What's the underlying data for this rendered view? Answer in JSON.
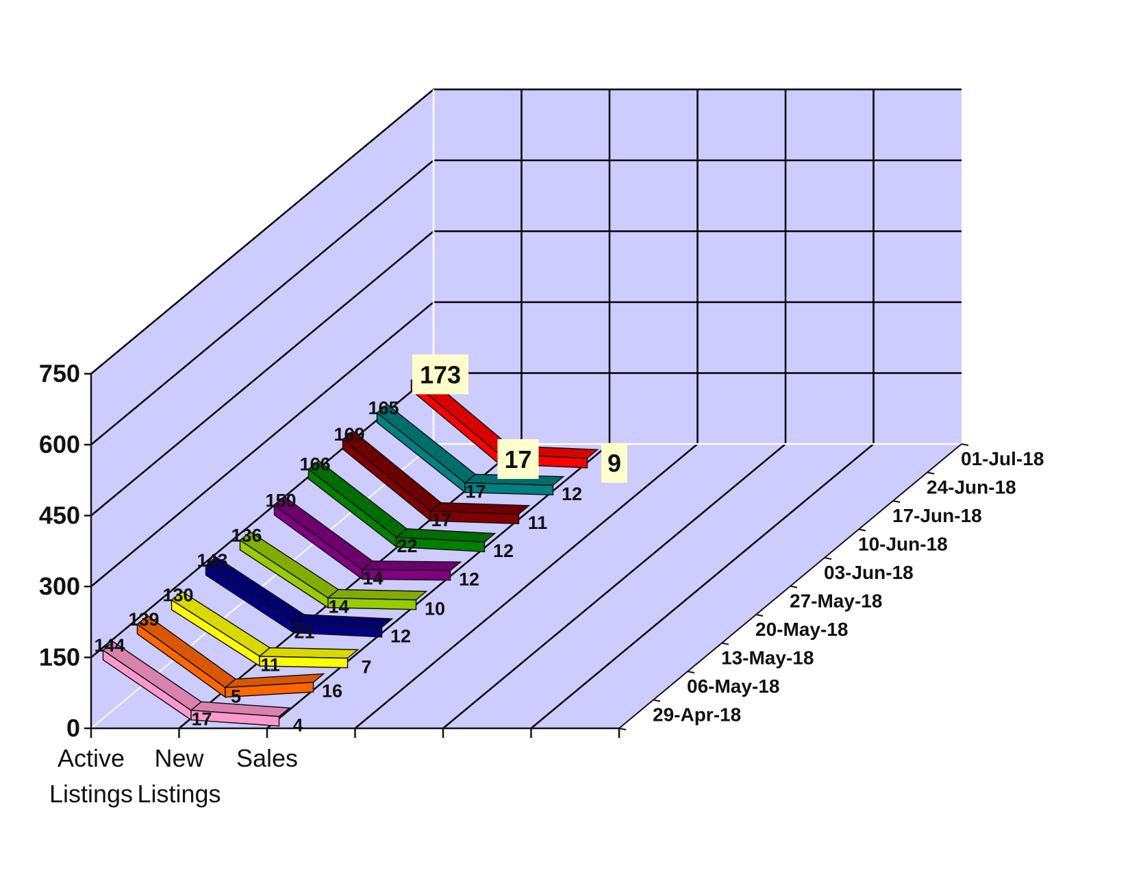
{
  "chart_data": {
    "type": "line",
    "style": "3d-ribbon",
    "title": "",
    "categories": [
      "Active Listings",
      "New Listings",
      "Sales"
    ],
    "category_lines": [
      [
        "Active",
        "Listings"
      ],
      [
        "New",
        "Listings"
      ],
      [
        "Sales"
      ]
    ],
    "y_ticks": [
      "0",
      "150",
      "300",
      "450",
      "600",
      "750"
    ],
    "ylim": [
      0,
      750
    ],
    "grid": true,
    "series": [
      {
        "name": "29-Apr-18",
        "values": [
          144,
          17,
          4
        ],
        "color": "#FF99CC"
      },
      {
        "name": "06-May-18",
        "values": [
          139,
          5,
          16
        ],
        "color": "#FF6600"
      },
      {
        "name": "13-May-18",
        "values": [
          130,
          11,
          7
        ],
        "color": "#FFFF00"
      },
      {
        "name": "20-May-18",
        "values": [
          143,
          21,
          12
        ],
        "color": "#000080"
      },
      {
        "name": "27-May-18",
        "values": [
          136,
          14,
          10
        ],
        "color": "#99CC00"
      },
      {
        "name": "03-Jun-18",
        "values": [
          150,
          14,
          12
        ],
        "color": "#800080"
      },
      {
        "name": "10-Jun-18",
        "values": [
          166,
          22,
          12
        ],
        "color": "#008000"
      },
      {
        "name": "17-Jun-18",
        "values": [
          169,
          17,
          11
        ],
        "color": "#800000"
      },
      {
        "name": "24-Jun-18",
        "values": [
          165,
          17,
          12
        ],
        "color": "#008080"
      },
      {
        "name": "01-Jul-18",
        "values": [
          173,
          17,
          9
        ],
        "color": "#FF0000"
      }
    ],
    "colors": {
      "wall": "#CCCCFF",
      "grid": "#000000",
      "highlight_label_bg": "#FFFFCC"
    }
  }
}
